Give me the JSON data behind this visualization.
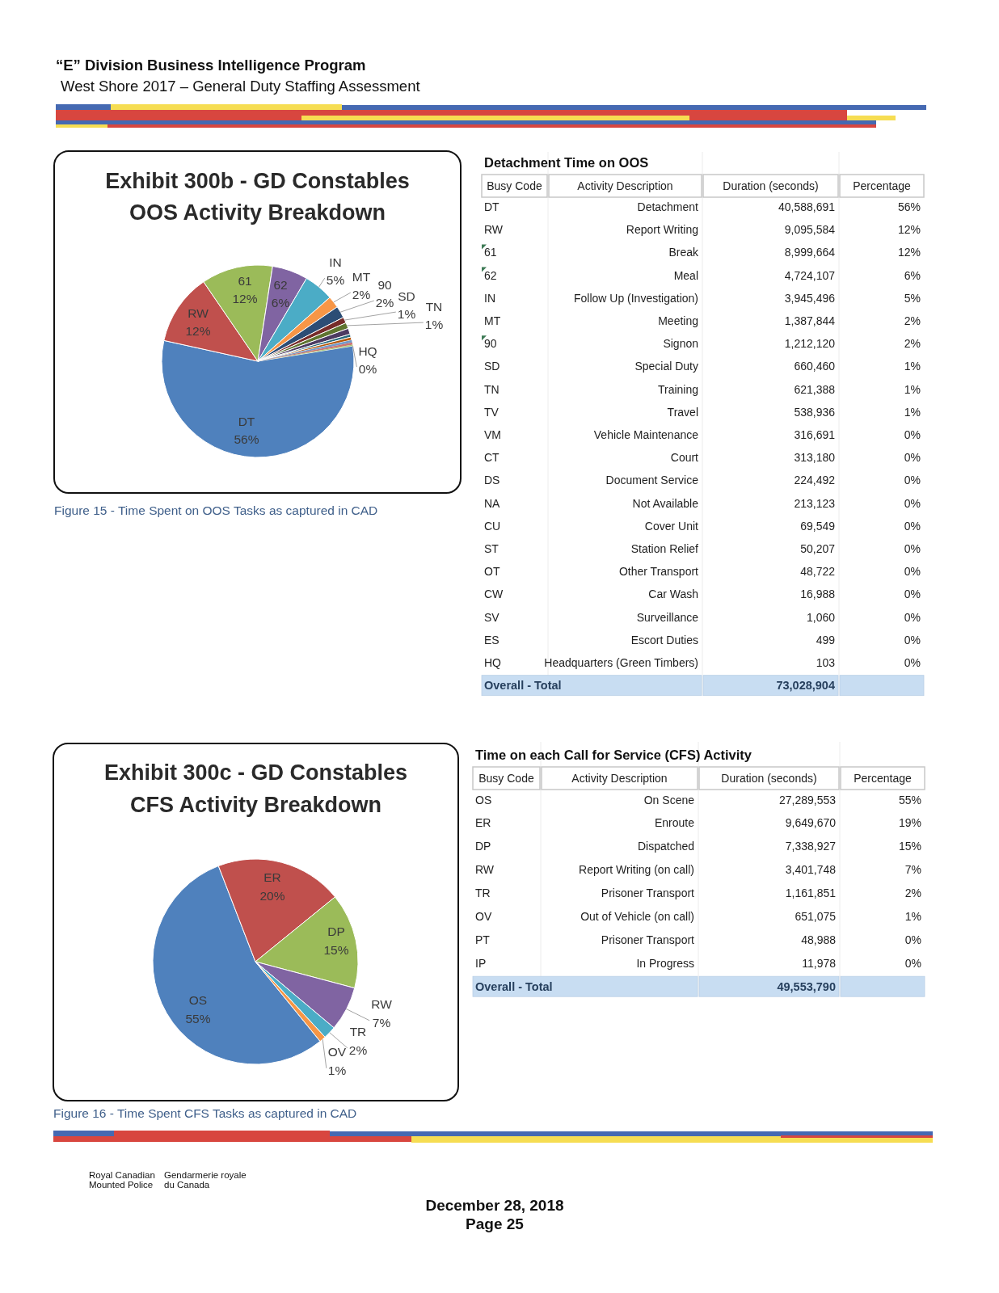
{
  "chart_data": [
    {
      "type": "pie",
      "title": "Exhibit 300b - GD Constables OOS Activity Breakdown",
      "categories": [
        "DT",
        "RW",
        "61",
        "62",
        "IN",
        "MT",
        "90",
        "SD",
        "TN",
        null,
        null,
        null,
        null,
        null,
        null,
        null,
        null,
        null,
        null,
        null,
        "HQ"
      ],
      "values": [
        56,
        12,
        12,
        6,
        5,
        2,
        2,
        1,
        1,
        1,
        0.5,
        0.5,
        0.4,
        0.4,
        0.2,
        0,
        0,
        0,
        0,
        0,
        0
      ],
      "value_labels": [
        "56%",
        "12%",
        "12%",
        "6%",
        "5%",
        "2%",
        "2%",
        "1%",
        "1%",
        null,
        null,
        null,
        null,
        null,
        null,
        null,
        null,
        null,
        null,
        null,
        "0%"
      ],
      "colors": [
        "#4f81bd",
        "#c0504d",
        "#9bbb59",
        "#8064a2",
        "#4bacc6",
        "#f79646",
        "#2c4d75",
        "#772c2a",
        "#5f7530",
        "#4d3b62",
        "#276a7c",
        "#b65708",
        "#729aca",
        "#cd7371",
        "#afc97a",
        null,
        null,
        null,
        null,
        null,
        null
      ],
      "annotations": [
        "“E” Division Business Intelligence Program",
        "West Shore 2017 – General Duty Staffing Assessment",
        "Figure 15 - Time Spent on OOS Tasks as captured in CAD"
      ]
    },
    {
      "type": "other",
      "title": "Detachment Time on OOS",
      "categories": [
        "Busy Code",
        "Activity Description",
        "Duration (seconds)",
        "Percentage"
      ],
      "cell_labels": [
        [
          "DT",
          "Detachment",
          "40,588,691",
          "56%"
        ],
        [
          "RW",
          "Report Writing",
          "9,095,584",
          "12%"
        ],
        [
          "61",
          "Break",
          "8,999,664",
          "12%"
        ],
        [
          "62",
          "Meal",
          "4,724,107",
          "6%"
        ],
        [
          "IN",
          "Follow Up (Investigation)",
          "3,945,496",
          "5%"
        ],
        [
          "MT",
          "Meeting",
          "1,387,844",
          "2%"
        ],
        [
          "90",
          "Signon",
          "1,212,120",
          "2%"
        ],
        [
          "SD",
          "Special Duty",
          "660,460",
          "1%"
        ],
        [
          "TN",
          "Training",
          "621,388",
          "1%"
        ],
        [
          "TV",
          "Travel",
          "538,936",
          "1%"
        ],
        [
          "VM",
          "Vehicle Maintenance",
          "316,691",
          "0%"
        ],
        [
          "CT",
          "Court",
          "313,180",
          "0%"
        ],
        [
          "DS",
          "Document Service",
          "224,492",
          "0%"
        ],
        [
          "NA",
          "Not Available",
          "213,123",
          "0%"
        ],
        [
          "CU",
          "Cover Unit",
          "69,549",
          "0%"
        ],
        [
          "ST",
          "Station Relief",
          "50,207",
          "0%"
        ],
        [
          "OT",
          "Other Transport",
          "48,722",
          "0%"
        ],
        [
          "CW",
          "Car Wash",
          "16,988",
          "0%"
        ],
        [
          "SV",
          "Surveillance",
          "1,060",
          "0%"
        ],
        [
          "ES",
          "Escort Duties",
          "499",
          "0%"
        ],
        [
          "HQ",
          "Headquarters (Green Timbers)",
          "103",
          "0%"
        ],
        [
          "Overall - Total",
          null,
          "73,028,904",
          null
        ]
      ]
    },
    {
      "type": "pie",
      "title": "Exhibit 300c - GD Constables CFS Activity Breakdown",
      "categories": [
        "OS",
        "ER",
        "DP",
        "RW",
        "TR",
        "OV",
        null,
        null
      ],
      "values": [
        55,
        20,
        15,
        7,
        2,
        1,
        0,
        0
      ],
      "value_labels": [
        "55%",
        "20%",
        "15%",
        "7%",
        "2%",
        "1%",
        null,
        null
      ],
      "colors": [
        "#4f81bd",
        "#c0504d",
        "#9bbb59",
        "#8064a2",
        "#4bacc6",
        "#f79646",
        null,
        null
      ],
      "annotations": [
        "Figure 16 - Time Spent CFS Tasks as captured in CAD"
      ]
    },
    {
      "type": "other",
      "title": "Time on each Call for Service (CFS) Activity",
      "categories": [
        "Busy Code",
        "Activity Description",
        "Duration (seconds)",
        "Percentage"
      ],
      "cell_labels": [
        [
          "OS",
          "On Scene",
          "27,289,553",
          "55%"
        ],
        [
          "ER",
          "Enroute",
          "9,649,670",
          "19%"
        ],
        [
          "DP",
          "Dispatched",
          "7,338,927",
          "15%"
        ],
        [
          "RW",
          "Report Writing (on call)",
          "3,401,748",
          "7%"
        ],
        [
          "TR",
          "Prisoner Transport",
          "1,161,851",
          "2%"
        ],
        [
          "OV",
          "Out of Vehicle (on call)",
          "651,075",
          "1%"
        ],
        [
          "PT",
          "Prisoner Transport",
          "48,988",
          "0%"
        ],
        [
          "IP",
          "In Progress",
          "11,978",
          "0%"
        ],
        [
          "Overall - Total",
          null,
          "49,553,790",
          null
        ]
      ],
      "annotations": [
        "Royal Canadian Mounted Police",
        "Gendarmerie royale du Canada",
        "December 28, 2018",
        "Page 25"
      ]
    }
  ]
}
